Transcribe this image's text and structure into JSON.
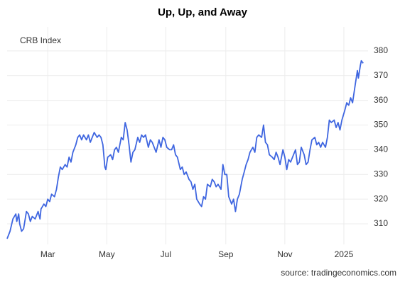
{
  "chart_data": {
    "type": "line",
    "title": "Up, Up, and Away",
    "annotation": "CRB Index",
    "source": "source: tradingeconomics.com",
    "x": [
      0,
      3,
      6,
      9,
      10,
      12,
      13,
      15,
      17,
      20,
      22,
      24,
      26,
      29,
      32,
      34,
      35,
      38,
      40,
      42,
      44,
      46,
      49,
      51,
      53,
      55,
      57,
      60,
      62,
      64,
      66,
      68,
      71,
      73,
      75,
      77,
      79,
      82,
      84,
      86,
      88,
      90,
      93,
      95,
      97,
      99,
      101,
      102,
      104,
      107,
      109,
      111,
      113,
      115,
      118,
      120,
      122,
      124,
      126,
      128,
      130,
      132,
      135,
      137,
      139,
      141,
      143,
      146,
      148,
      150,
      152,
      154,
      157,
      159,
      161,
      163,
      165,
      168,
      170,
      172,
      174,
      176,
      179,
      181,
      183,
      185,
      188,
      190,
      192,
      194,
      196,
      199,
      201,
      203,
      205,
      207,
      210,
      212,
      214,
      216,
      218,
      221,
      223,
      225,
      227,
      229,
      232,
      234,
      236,
      238,
      240,
      243,
      245,
      247,
      249,
      251,
      254,
      256,
      258,
      260,
      263,
      265,
      267,
      269,
      271,
      274,
      276,
      278,
      280,
      282,
      285,
      287,
      289,
      291,
      293,
      296,
      298,
      300,
      302,
      304,
      307,
      309,
      311,
      313,
      315,
      318,
      320,
      322,
      324,
      326,
      329,
      331,
      333,
      335,
      338,
      340,
      342,
      344,
      346,
      349,
      351,
      353,
      355,
      357,
      360,
      362,
      363,
      365,
      366,
      368
    ],
    "series": [
      {
        "name": "CRB Index",
        "color": "#3f66e0",
        "values": [
          304,
          307,
          312,
          314,
          311,
          314,
          310,
          307,
          308,
          315,
          314,
          311,
          313,
          312,
          315,
          312,
          316,
          318,
          317,
          320,
          319,
          322,
          321,
          324,
          329,
          333,
          332,
          334,
          333,
          337,
          335,
          339,
          342,
          345,
          346,
          344,
          346,
          344,
          346,
          343,
          345,
          347,
          345,
          346,
          345,
          342,
          333,
          332,
          337,
          338,
          336,
          340,
          341,
          339,
          345,
          344,
          351,
          348,
          342,
          335,
          339,
          340,
          345,
          343,
          346,
          345,
          346,
          341,
          344,
          343,
          341,
          339,
          344,
          341,
          345,
          344,
          341,
          340,
          340,
          342,
          338,
          337,
          332,
          333,
          330,
          331,
          328,
          327,
          324,
          326,
          320,
          318,
          317,
          321,
          320,
          326,
          325,
          328,
          327,
          325,
          326,
          324,
          334,
          330,
          330,
          321,
          318,
          320,
          315,
          320,
          322,
          328,
          331,
          334,
          336,
          339,
          341,
          339,
          345,
          346,
          345,
          350,
          343,
          342,
          338,
          337,
          336,
          339,
          337,
          334,
          340,
          337,
          332,
          336,
          335,
          338,
          340,
          334,
          335,
          341,
          338,
          334,
          335,
          340,
          344,
          345,
          342,
          343,
          341,
          343,
          341,
          345,
          352,
          351,
          352,
          349,
          351,
          348,
          352,
          356,
          359,
          358,
          361,
          359,
          367,
          372,
          369,
          374,
          376,
          375
        ]
      }
    ],
    "xlim": [
      0,
      373
    ],
    "xticks": [
      {
        "value": 42,
        "label": "Mar"
      },
      {
        "value": 103,
        "label": "May"
      },
      {
        "value": 164,
        "label": "Jul"
      },
      {
        "value": 226,
        "label": "Sep"
      },
      {
        "value": 287,
        "label": "Nov"
      },
      {
        "value": 348,
        "label": "2025"
      }
    ],
    "ylim": [
      301.7,
      389.7
    ],
    "yticks": [
      310,
      320,
      330,
      340,
      350,
      360,
      370,
      380
    ],
    "grid": true
  }
}
